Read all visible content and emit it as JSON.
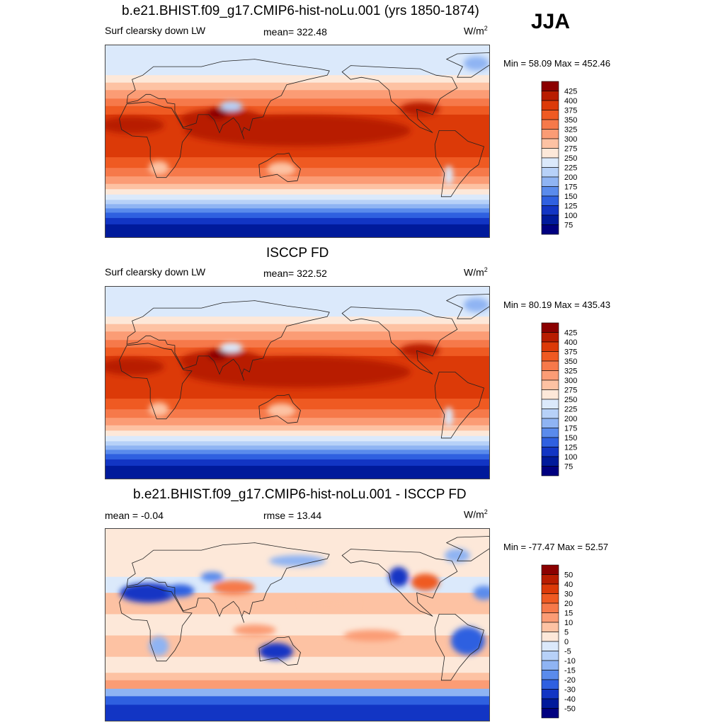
{
  "season": "JJA",
  "panels": [
    {
      "title": "b.e21.BHIST.f09_g17.CMIP6-hist-noLu.001 (yrs 1850-1874)",
      "left_label": "Surf clearsky down LW",
      "center_label": "mean= 322.48",
      "units": "W/m",
      "units_sup": "2",
      "minmax": "Min =  58.09 Max = 452.46",
      "kind": "abs"
    },
    {
      "title": "ISCCP FD",
      "left_label": "Surf clearsky down LW",
      "center_label": "mean= 322.52",
      "units": "W/m",
      "units_sup": "2",
      "minmax": "Min =  80.19 Max = 435.43",
      "kind": "abs"
    },
    {
      "title": "b.e21.BHIST.f09_g17.CMIP6-hist-noLu.001 - ISCCP FD",
      "left_label": "mean =  -0.04",
      "center_label": "rmse =  13.44",
      "units": "W/m",
      "units_sup": "2",
      "minmax": "Min = -77.47 Max =  52.57",
      "kind": "diff"
    }
  ],
  "colorbars": {
    "abs": {
      "levels": [
        "425",
        "400",
        "375",
        "350",
        "325",
        "300",
        "275",
        "250",
        "225",
        "200",
        "175",
        "150",
        "125",
        "100",
        "75"
      ],
      "colors": [
        "#8b0000",
        "#b81d00",
        "#dc3a08",
        "#ef5a22",
        "#f6794a",
        "#fb9c75",
        "#fdc2a3",
        "#fde8d9",
        "#dbe9fb",
        "#b7d1f8",
        "#8fb4f3",
        "#5a8bec",
        "#2f60e0",
        "#1235c4",
        "#001a9b",
        "#000080"
      ]
    },
    "diff": {
      "levels": [
        "50",
        "40",
        "30",
        "20",
        "15",
        "10",
        "5",
        "0",
        "-5",
        "-10",
        "-15",
        "-20",
        "-30",
        "-40",
        "-50"
      ],
      "colors": [
        "#8b0000",
        "#b81d00",
        "#dc3a08",
        "#ef5a22",
        "#f6794a",
        "#fb9c75",
        "#fdc2a3",
        "#fde8d9",
        "#dbe9fb",
        "#b7d1f8",
        "#8fb4f3",
        "#5a8bec",
        "#2f60e0",
        "#1235c4",
        "#001a9b",
        "#000080"
      ]
    }
  }
}
